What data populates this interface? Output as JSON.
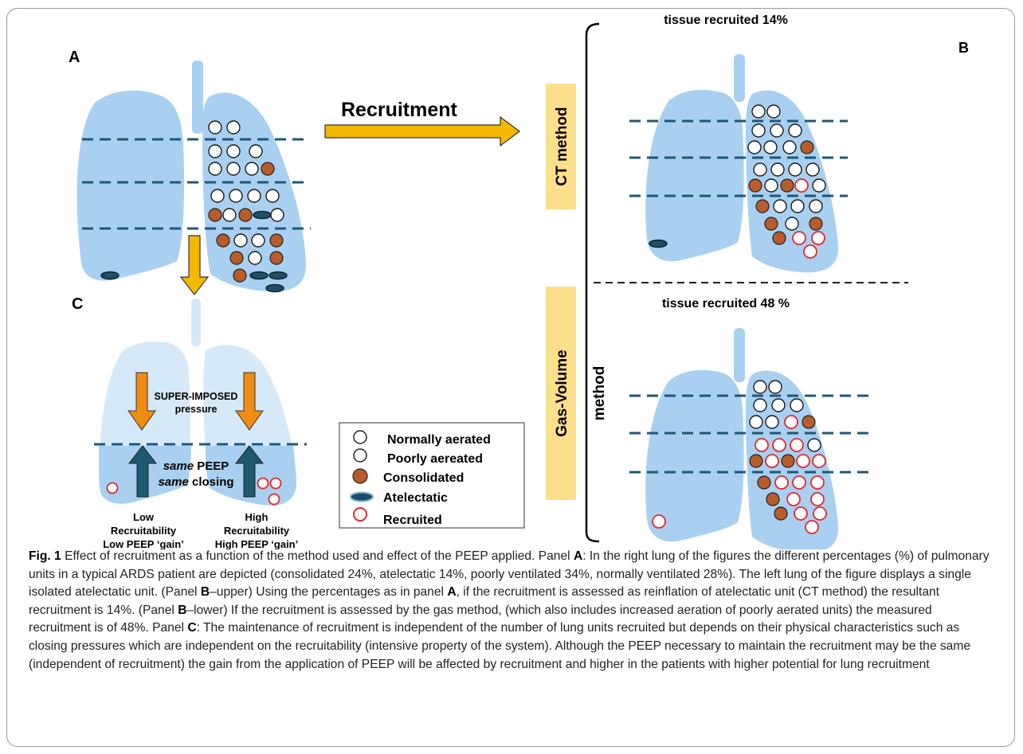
{
  "panel_a": {
    "label": "A",
    "recruitment_label": "Recruitment"
  },
  "panel_b": {
    "label": "B",
    "ct_method_label": "CT method",
    "ct_title": "tissue recruited 14%",
    "gas_method_label_line1": "Gas-Volume",
    "gas_method_label_line2": "method",
    "gas_title": "tissue recruited 48 %"
  },
  "panel_c": {
    "label": "C",
    "super_line1": "SUPER-IMPOSED",
    "super_line2": "pressure",
    "same_peep_italic": "same",
    "same_peep_rest": " PEEP",
    "same_closing_italic": "same",
    "same_closing_rest": " closing",
    "low_line1": "Low",
    "low_line2": "Recruitability",
    "low_line3": "Low PEEP ‘gain’",
    "high_line1": "High",
    "high_line2": "Recruitability",
    "high_line3": "High PEEP ‘gain’"
  },
  "legend": {
    "items": [
      {
        "label": "Normally aerated",
        "kind": "normal"
      },
      {
        "label": "Poorly aereated",
        "kind": "poor"
      },
      {
        "label": "Consolidated",
        "kind": "consolidated"
      },
      {
        "label": "Atelectatic",
        "kind": "atelectatic"
      },
      {
        "label": "Recruited",
        "kind": "recruited"
      }
    ]
  },
  "colors": {
    "lung": "#a9d0f0",
    "lung_light": "#d6e9f8",
    "consolidated": "#b85c2c",
    "atelectatic": "#1f4f66",
    "recruited": "#e8262a",
    "dashed": "#1f5777",
    "arrow_yellow": "#f5b800",
    "arrow_orange": "#f18c13",
    "arrow_teal": "#1d5970",
    "method_bg": "#fcdf8a"
  },
  "caption": {
    "fig_label": "Fig. 1",
    "text_1": " Effect of recruitment as a function of the method used and effect of the PEEP applied. Panel ",
    "panel_a": "A",
    "text_2": ": In the right lung of the figures the different percentages (%) of pulmonary units in a typical ARDS patient are depicted (consolidated 24%, atelectatic 14%, poorly ventilated 34%, normally ventilated 28%). The left lung of the figure displays a single isolated atelectatic unit. (Panel ",
    "panel_b1": "B",
    "text_3": "–upper) Using the percentages as in panel ",
    "panel_a2": "A",
    "text_4": ", if the recruitment is assessed as reinflation of atelectatic unit (CT method) the resultant recruitment is 14%. (Panel ",
    "panel_b2": "B",
    "text_5": "–lower) If the recruitment is assessed by the gas method, (which also includes increased aeration of poorly aerated units) the measured recruitment is of 48%. Panel ",
    "panel_c": "C",
    "text_6": ": The maintenance of recruitment is independent of the number of lung units recruited but depends on their physical characteristics such as closing pressures which are independent on the recruitability (intensive property of the system). Although the PEEP necessary to maintain the recruitment may be the same (independent of recruitment) the gain from the application of PEEP will be affected by recruitment and higher in the patients with higher potential for lung recruitment"
  }
}
